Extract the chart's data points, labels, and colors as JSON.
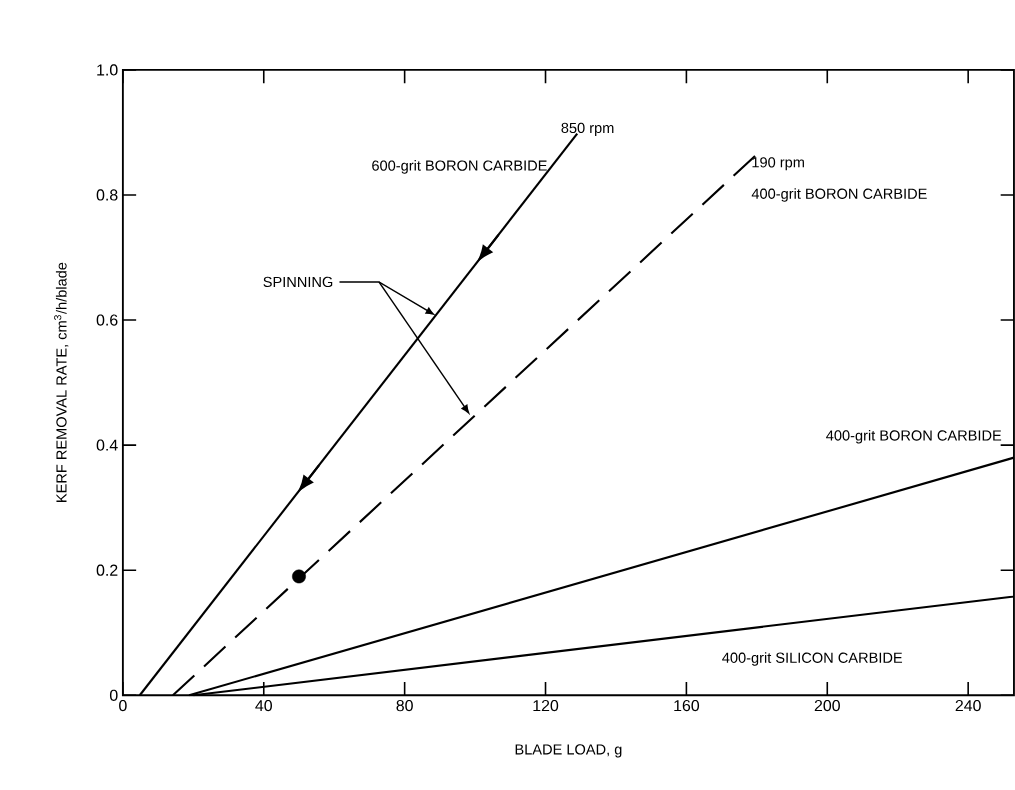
{
  "chart_data": {
    "type": "line",
    "xlabel": "BLADE LOAD, g",
    "ylabel": "KERF REMOVAL RATE, cm$^{3}$/h/blade",
    "xlim": [
      0,
      253
    ],
    "ylim": [
      0,
      1.0
    ],
    "xticks": [
      0,
      40,
      80,
      120,
      160,
      200,
      240
    ],
    "yticks": [
      {
        "value": 0,
        "label": "0"
      },
      {
        "value": 0.2,
        "label": "0.2"
      },
      {
        "value": 0.4,
        "label": "0.4"
      },
      {
        "value": 0.6,
        "label": "0.6"
      },
      {
        "value": 0.8,
        "label": "0.8"
      },
      {
        "value": 1.0,
        "label": "1.0"
      }
    ],
    "grid": false,
    "series": [
      {
        "name": "600-grit BORON CARBIDE",
        "color": "#000000",
        "x": [
          4.8,
          129
        ],
        "values": [
          0,
          0.898
        ],
        "line_style": "solid"
      },
      {
        "name": "400-grit BORON CARBIDE",
        "color": "#000000",
        "x": [
          14.2,
          179.8
        ],
        "values": [
          0,
          0.864
        ],
        "line_style": "dashed"
      },
      {
        "name": "400-grit BORON CARBIDE",
        "color": "#000000",
        "x": [
          18.8,
          253
        ],
        "values": [
          0,
          0.38
        ],
        "line_style": "solid"
      },
      {
        "name": "400-grit SILICON CARBIDE",
        "color": "#000000",
        "x": [
          20,
          253
        ],
        "values": [
          0,
          0.158
        ],
        "line_style": "solid"
      },
      {
        "type": "scatter",
        "color": "#000000",
        "x": [
          50
        ],
        "values": [
          0.19
        ]
      }
    ],
    "annotations": [
      "850 rpm",
      "190 rpm",
      "SPINNING"
    ]
  }
}
